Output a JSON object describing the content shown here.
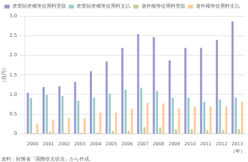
{
  "chart_data": {
    "type": "bar",
    "categories": [
      "2000",
      "2001",
      "2002",
      "2003",
      "2004",
      "2005",
      "2006",
      "2007",
      "2008",
      "2009",
      "2010",
      "2011",
      "2012",
      "2013"
    ],
    "series": [
      {
        "name": "産業財産権等使用料受取",
        "color": "#9999cc",
        "values": [
          1.05,
          1.2,
          1.22,
          1.33,
          1.6,
          1.85,
          2.2,
          2.55,
          2.47,
          1.88,
          2.2,
          2.2,
          2.4,
          2.87
        ]
      },
      {
        "name": "産業財産権等使用料支払",
        "color": "#99cccc",
        "values": [
          0.92,
          1.0,
          0.97,
          0.85,
          0.93,
          1.03,
          1.13,
          1.18,
          1.1,
          0.93,
          0.93,
          0.82,
          0.88,
          0.93
        ]
      },
      {
        "name": "著作権等使用料受取",
        "color": "#cccc99",
        "values": [
          0.03,
          0.06,
          0.03,
          0.04,
          0.04,
          0.08,
          0.08,
          0.18,
          0.17,
          0.12,
          0.12,
          0.1,
          0.1,
          0.13
        ]
      },
      {
        "name": "著作権等使用料支払",
        "color": "#ffcc99",
        "values": [
          0.27,
          0.37,
          0.4,
          0.4,
          0.55,
          0.55,
          0.65,
          0.8,
          0.78,
          0.65,
          0.7,
          0.7,
          0.7,
          0.82
        ]
      }
    ],
    "xlabel": "（年）",
    "ylabel": "（兆円）",
    "annotations": [
      "資料：財務省「国際収支状況」から作成。"
    ],
    "ylim": [
      0,
      3.0
    ],
    "yticks": [
      0,
      0.5,
      {
        "value": 1.0,
        "label": "1.0"
      },
      1.5,
      {
        "value": 2.0,
        "label": "2.0"
      },
      2.5,
      {
        "value": 3.0,
        "label": "3.0"
      }
    ],
    "grid": true,
    "legend": "upper left"
  }
}
